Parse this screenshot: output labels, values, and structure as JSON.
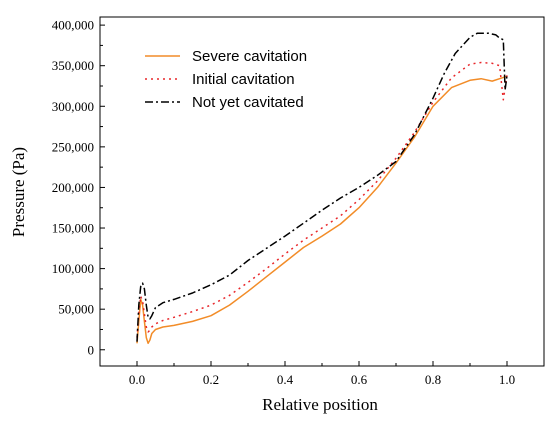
{
  "chart_data": {
    "type": "line",
    "title": "",
    "xlabel": "Relative position",
    "ylabel": "Pressure (Pa)",
    "xlim": [
      -0.1,
      1.1
    ],
    "ylim": [
      -20000,
      410000
    ],
    "x_ticks": [
      0.0,
      0.2,
      0.4,
      0.6,
      0.8,
      1.0
    ],
    "x_tick_labels": [
      "0.0",
      "0.2",
      "0.4",
      "0.6",
      "0.8",
      "1.0"
    ],
    "y_ticks": [
      0,
      50000,
      100000,
      150000,
      200000,
      250000,
      300000,
      350000,
      400000
    ],
    "y_tick_labels": [
      "0",
      "50,000",
      "100,000",
      "150,000",
      "200,000",
      "250,000",
      "300,000",
      "350,000",
      "400,000"
    ],
    "grid": false,
    "legend_position": "top-left",
    "series": [
      {
        "name": "Severe cavitation",
        "color": "#f28c28",
        "style": "solid",
        "x": [
          0.0,
          0.005,
          0.01,
          0.015,
          0.02,
          0.025,
          0.03,
          0.035,
          0.04,
          0.05,
          0.07,
          0.1,
          0.15,
          0.2,
          0.25,
          0.3,
          0.35,
          0.4,
          0.45,
          0.5,
          0.55,
          0.6,
          0.65,
          0.7,
          0.75,
          0.8,
          0.85,
          0.9,
          0.93,
          0.96,
          0.98,
          1.0
        ],
        "y": [
          8000,
          35000,
          62000,
          55000,
          35000,
          15000,
          8000,
          12000,
          20000,
          25000,
          28000,
          30000,
          35000,
          42000,
          55000,
          72000,
          90000,
          108000,
          126000,
          140000,
          155000,
          175000,
          200000,
          230000,
          262000,
          300000,
          323000,
          332000,
          334000,
          331000,
          334000,
          337000
        ]
      },
      {
        "name": "Initial cavitation",
        "color": "#e8262a",
        "style": "dotted",
        "x": [
          0.0,
          0.005,
          0.01,
          0.015,
          0.02,
          0.025,
          0.03,
          0.035,
          0.04,
          0.05,
          0.07,
          0.1,
          0.15,
          0.2,
          0.25,
          0.3,
          0.35,
          0.4,
          0.45,
          0.5,
          0.55,
          0.6,
          0.65,
          0.7,
          0.75,
          0.8,
          0.85,
          0.9,
          0.93,
          0.96,
          0.98,
          0.99,
          1.0
        ],
        "y": [
          15000,
          45000,
          66000,
          60000,
          44000,
          28000,
          22000,
          24000,
          28000,
          32000,
          36000,
          40000,
          47000,
          55000,
          67000,
          83000,
          100000,
          118000,
          135000,
          150000,
          165000,
          185000,
          208000,
          236000,
          268000,
          305000,
          335000,
          352000,
          354000,
          353000,
          350000,
          308000,
          338000
        ]
      },
      {
        "name": "Not yet cavitated",
        "color": "#000000",
        "style": "dashdot",
        "x": [
          0.0,
          0.005,
          0.01,
          0.015,
          0.02,
          0.025,
          0.03,
          0.035,
          0.04,
          0.05,
          0.07,
          0.1,
          0.15,
          0.2,
          0.25,
          0.3,
          0.35,
          0.4,
          0.45,
          0.5,
          0.55,
          0.6,
          0.65,
          0.7,
          0.75,
          0.8,
          0.83,
          0.86,
          0.9,
          0.92,
          0.95,
          0.97,
          0.98,
          0.99,
          0.995,
          1.0
        ],
        "y": [
          10000,
          55000,
          78000,
          82000,
          75000,
          55000,
          40000,
          38000,
          42000,
          52000,
          58000,
          62000,
          70000,
          80000,
          92000,
          110000,
          125000,
          140000,
          156000,
          172000,
          187000,
          200000,
          215000,
          232000,
          265000,
          310000,
          340000,
          365000,
          385000,
          390000,
          390000,
          388000,
          384000,
          382000,
          320000,
          338000
        ]
      }
    ]
  }
}
